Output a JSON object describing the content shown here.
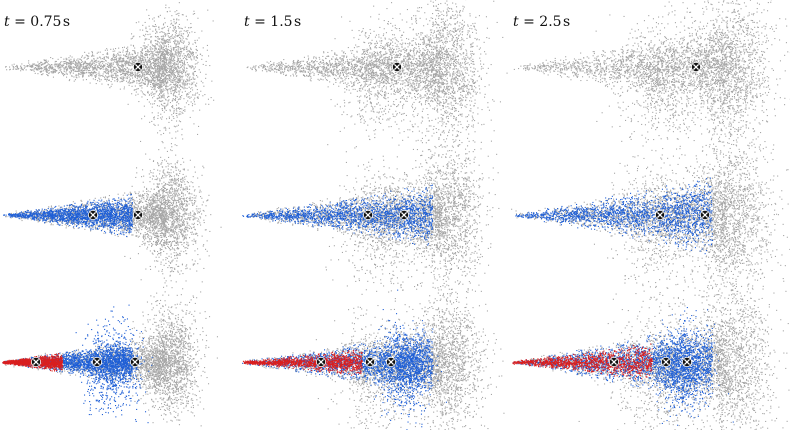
{
  "columns": [
    {
      "var": "t",
      "eq": " = ",
      "value": "0.75",
      "unit": "s"
    },
    {
      "var": "t",
      "eq": " = ",
      "value": "1.5",
      "unit": "s"
    },
    {
      "var": "t",
      "eq": " = ",
      "value": "2.5",
      "unit": "s"
    }
  ],
  "rows": [
    {
      "name": "row-gray-only",
      "layers": [
        "gray"
      ]
    },
    {
      "name": "row-gray-blue",
      "layers": [
        "gray",
        "blue"
      ]
    },
    {
      "name": "row-gray-blue-red",
      "layers": [
        "gray",
        "blue",
        "red"
      ]
    }
  ],
  "colors": {
    "gray": "#a6a6a6",
    "blue": "#1f5fd6",
    "red": "#d91f1f",
    "marker_fill": "#111111",
    "marker_cross": "#ffffff"
  },
  "marker_icon": "circled-cross-icon"
}
